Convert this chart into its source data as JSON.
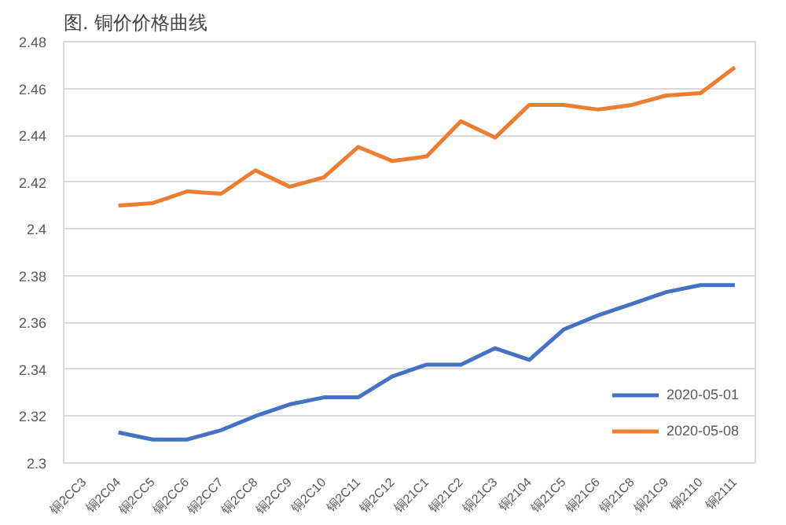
{
  "chart_data": {
    "type": "line",
    "title": "图. 铜价价格曲线",
    "categories": [
      "铜2CC3",
      "铜2C04",
      "铜2CC5",
      "铜2CC6",
      "铜2CC7",
      "铜2CC8",
      "铜2CC9",
      "铜2C10",
      "铜2C11",
      "铜2C12",
      "铜21C1",
      "铜21C2",
      "铜21C3",
      "铜2104",
      "铜21C5",
      "铜21C6",
      "铜21C8",
      "铜21C9",
      "铜2110",
      "铜2111"
    ],
    "series": [
      {
        "name": "2020-05-01",
        "color": "#4472c4",
        "values": [
          null,
          2.313,
          2.31,
          2.31,
          2.314,
          2.32,
          2.325,
          2.328,
          2.328,
          2.337,
          2.342,
          2.342,
          2.349,
          2.344,
          2.357,
          2.363,
          2.368,
          2.373,
          2.376,
          2.376
        ]
      },
      {
        "name": "2020-05-08",
        "color": "#ed7d31",
        "values": [
          null,
          2.41,
          2.411,
          2.416,
          2.415,
          2.425,
          2.418,
          2.422,
          2.435,
          2.429,
          2.431,
          2.446,
          2.439,
          2.453,
          2.453,
          2.451,
          2.453,
          2.457,
          2.458,
          2.469
        ]
      }
    ],
    "ylim": [
      2.3,
      2.48
    ],
    "yticks": [
      2.3,
      2.32,
      2.34,
      2.36,
      2.38,
      2.4,
      2.42,
      2.44,
      2.46,
      2.48
    ],
    "grid": "y",
    "legend": "bottom right",
    "line_style": "solid"
  }
}
